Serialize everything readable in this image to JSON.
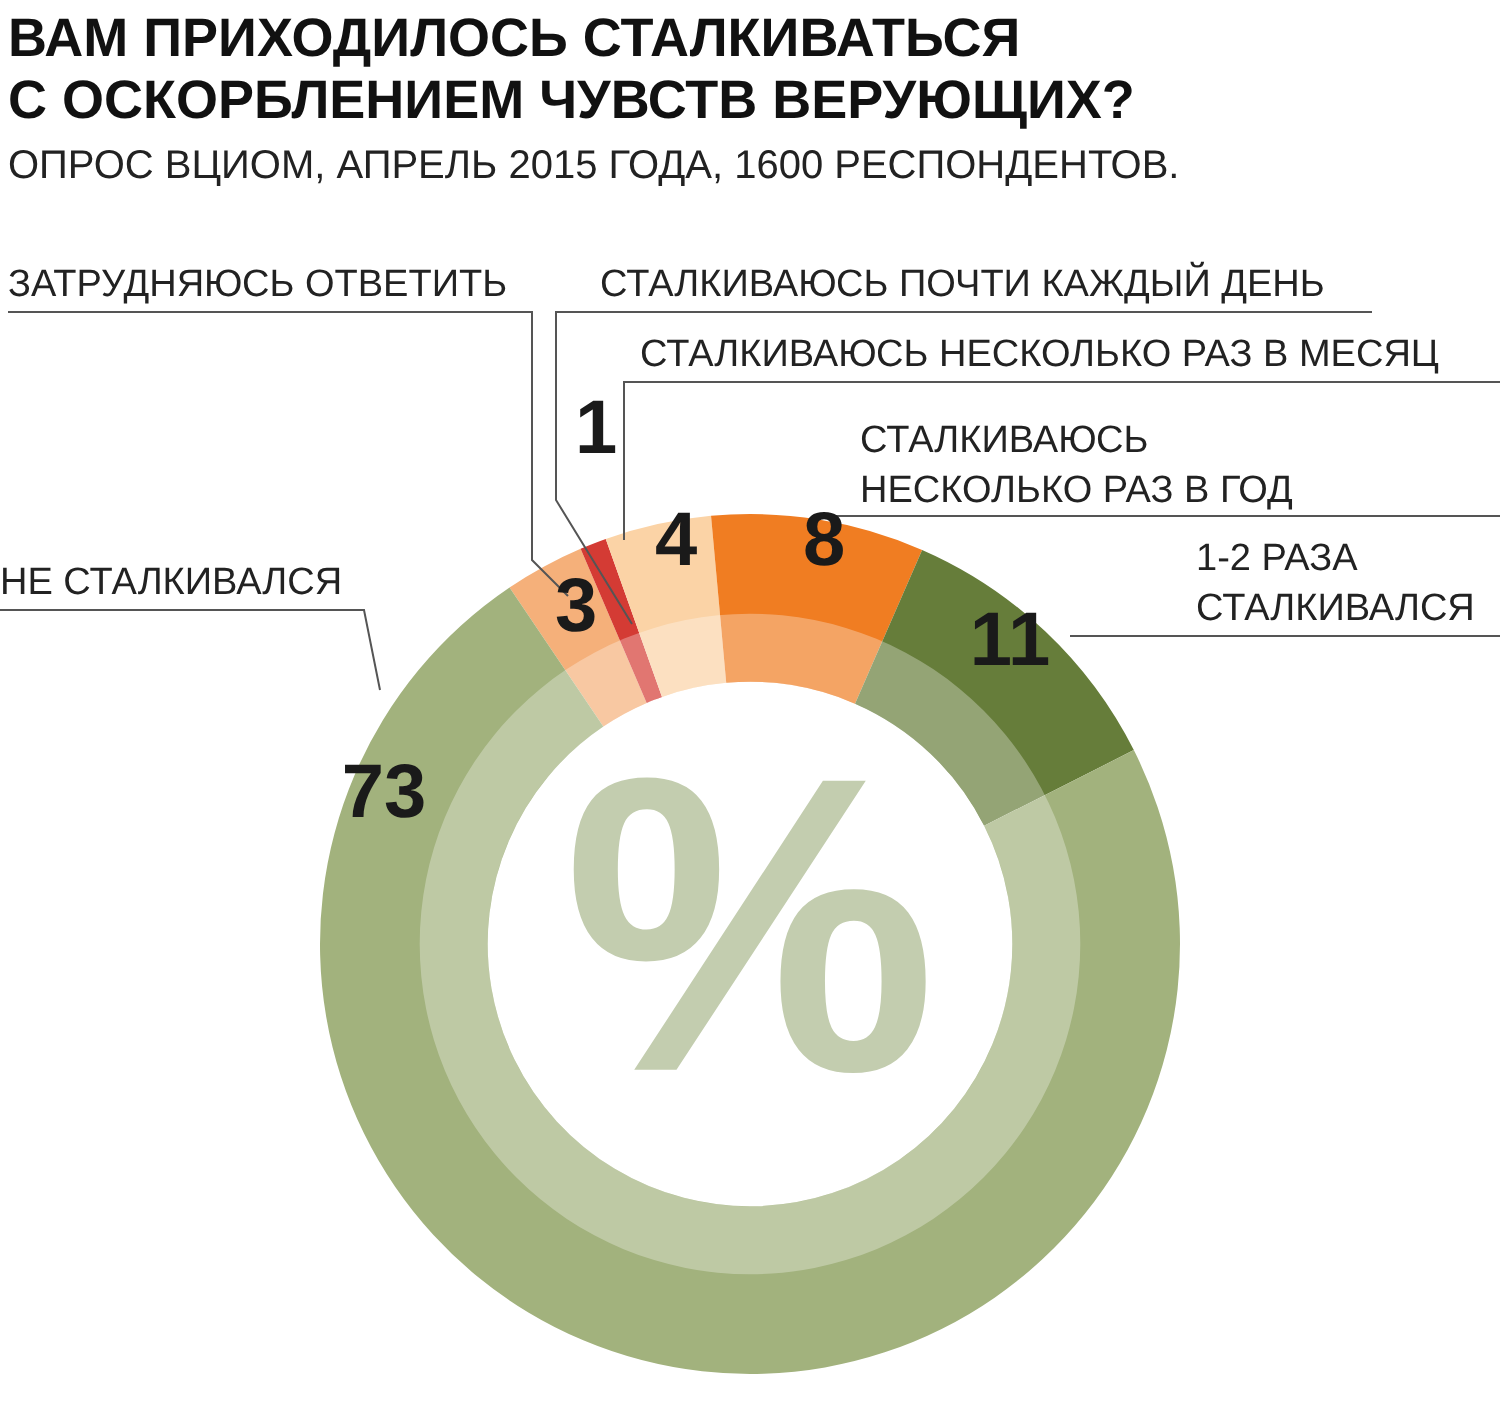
{
  "chart_data": {
    "type": "donut",
    "title": "ВАМ ПРИХОДИЛОСЬ СТАЛКИВАТЬСЯ\nС ОСКОРБЛЕНИЕМ ЧУВСТВ ВЕРУЮЩИХ?",
    "subtitle": "ОПРОС ВЦИОМ, АПРЕЛЬ 2015 ГОДА, 1600 РЕСПОНДЕНТОВ.",
    "categories": [
      "ЗАТРУДНЯЮСЬ ОТВЕТИТЬ",
      "СТАЛКИВАЮСЬ ПОЧТИ КАЖДЫЙ ДЕНЬ",
      "СТАЛКИВАЮСЬ НЕСКОЛЬКО РАЗ В МЕСЯЦ",
      "СТАЛКИВАЮСЬ\nНЕСКОЛЬКО РАЗ В ГОД",
      "1-2 РАЗА\nСТАЛКИВАЛСЯ",
      "НЕ СТАЛКИВАЛСЯ"
    ],
    "values": [
      3,
      1,
      4,
      8,
      11,
      73
    ],
    "colors": [
      "#f5b07a",
      "#d43b34",
      "#fbd3a6",
      "#f07d22",
      "#667d3a",
      "#a2b27d"
    ],
    "data_labels": true,
    "annotations": [
      "%"
    ]
  }
}
